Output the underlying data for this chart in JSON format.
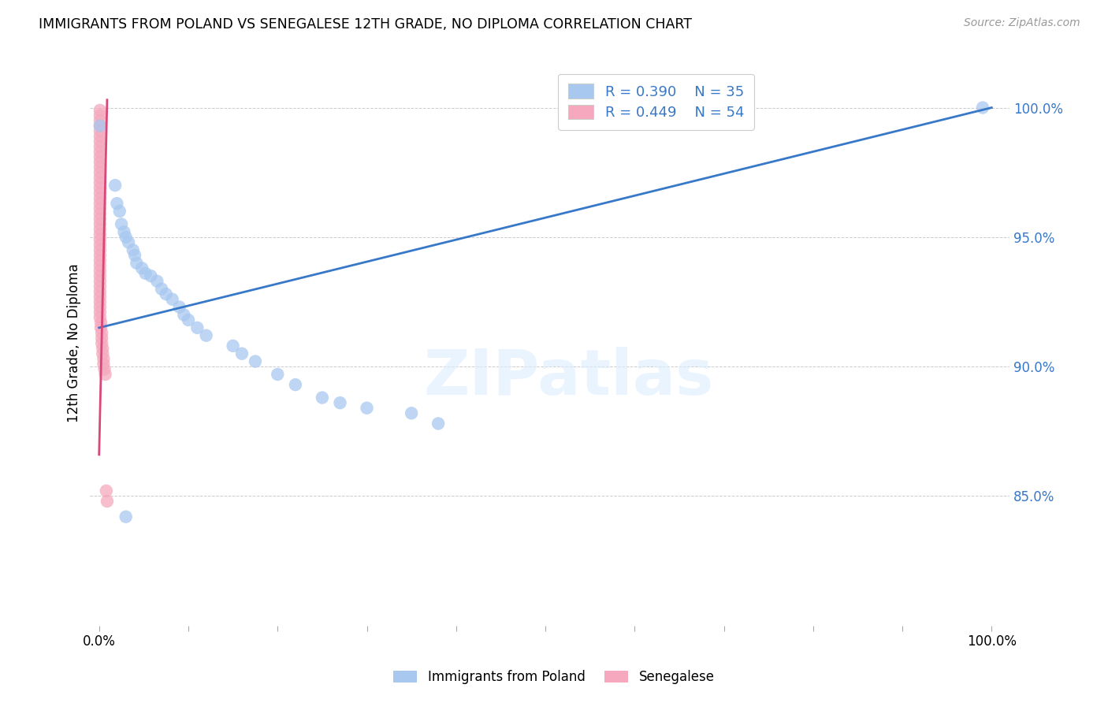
{
  "title": "IMMIGRANTS FROM POLAND VS SENEGALESE 12TH GRADE, NO DIPLOMA CORRELATION CHART",
  "source": "Source: ZipAtlas.com",
  "ylabel": "12th Grade, No Diploma",
  "R1": "0.390",
  "N1": "35",
  "R2": "0.449",
  "N2": "54",
  "legend_label_1": "Immigrants from Poland",
  "legend_label_2": "Senegalese",
  "blue_color": "#a8c8f0",
  "pink_color": "#f5a8be",
  "blue_line_color": "#3878c8",
  "pink_line_color": "#d84878",
  "watermark": "ZIPatlas",
  "background_color": "#ffffff",
  "xlim": [
    -0.01,
    1.02
  ],
  "ylim": [
    0.8,
    1.018
  ],
  "yticks": [
    0.85,
    0.9,
    0.95,
    1.0
  ],
  "ytick_labels": [
    "85.0%",
    "90.0%",
    "95.0%",
    "100.0%"
  ],
  "blue_scatter_x": [
    0.001,
    0.018,
    0.02,
    0.023,
    0.025,
    0.028,
    0.03,
    0.033,
    0.038,
    0.04,
    0.042,
    0.048,
    0.052,
    0.058,
    0.065,
    0.07,
    0.075,
    0.082,
    0.09,
    0.095,
    0.1,
    0.11,
    0.12,
    0.15,
    0.16,
    0.175,
    0.2,
    0.22,
    0.25,
    0.27,
    0.3,
    0.35,
    0.38,
    0.99,
    0.03
  ],
  "blue_scatter_y": [
    0.993,
    0.97,
    0.963,
    0.96,
    0.955,
    0.952,
    0.95,
    0.948,
    0.945,
    0.943,
    0.94,
    0.938,
    0.936,
    0.935,
    0.933,
    0.93,
    0.928,
    0.926,
    0.923,
    0.92,
    0.918,
    0.915,
    0.912,
    0.908,
    0.905,
    0.902,
    0.897,
    0.893,
    0.888,
    0.886,
    0.884,
    0.882,
    0.878,
    1.0,
    0.842
  ],
  "pink_scatter_x": [
    0.001,
    0.001,
    0.001,
    0.001,
    0.001,
    0.001,
    0.001,
    0.001,
    0.001,
    0.001,
    0.001,
    0.001,
    0.001,
    0.001,
    0.001,
    0.001,
    0.001,
    0.001,
    0.001,
    0.001,
    0.001,
    0.001,
    0.001,
    0.001,
    0.001,
    0.001,
    0.001,
    0.001,
    0.001,
    0.001,
    0.001,
    0.001,
    0.001,
    0.001,
    0.001,
    0.001,
    0.001,
    0.001,
    0.001,
    0.001,
    0.001,
    0.002,
    0.002,
    0.003,
    0.003,
    0.003,
    0.004,
    0.004,
    0.005,
    0.005,
    0.006,
    0.007,
    0.008,
    0.009
  ],
  "pink_scatter_y": [
    0.999,
    0.997,
    0.995,
    0.993,
    0.991,
    0.989,
    0.987,
    0.985,
    0.983,
    0.981,
    0.979,
    0.977,
    0.975,
    0.973,
    0.971,
    0.969,
    0.967,
    0.965,
    0.963,
    0.961,
    0.959,
    0.957,
    0.955,
    0.953,
    0.951,
    0.949,
    0.947,
    0.945,
    0.943,
    0.941,
    0.939,
    0.937,
    0.935,
    0.933,
    0.931,
    0.929,
    0.927,
    0.925,
    0.923,
    0.921,
    0.919,
    0.917,
    0.915,
    0.913,
    0.911,
    0.909,
    0.907,
    0.905,
    0.903,
    0.901,
    0.899,
    0.897,
    0.852,
    0.848
  ],
  "blue_line_x": [
    0.0,
    1.0
  ],
  "blue_line_y": [
    0.915,
    1.0
  ],
  "pink_line_x": [
    0.0,
    0.009
  ],
  "pink_line_y": [
    0.866,
    1.003
  ]
}
